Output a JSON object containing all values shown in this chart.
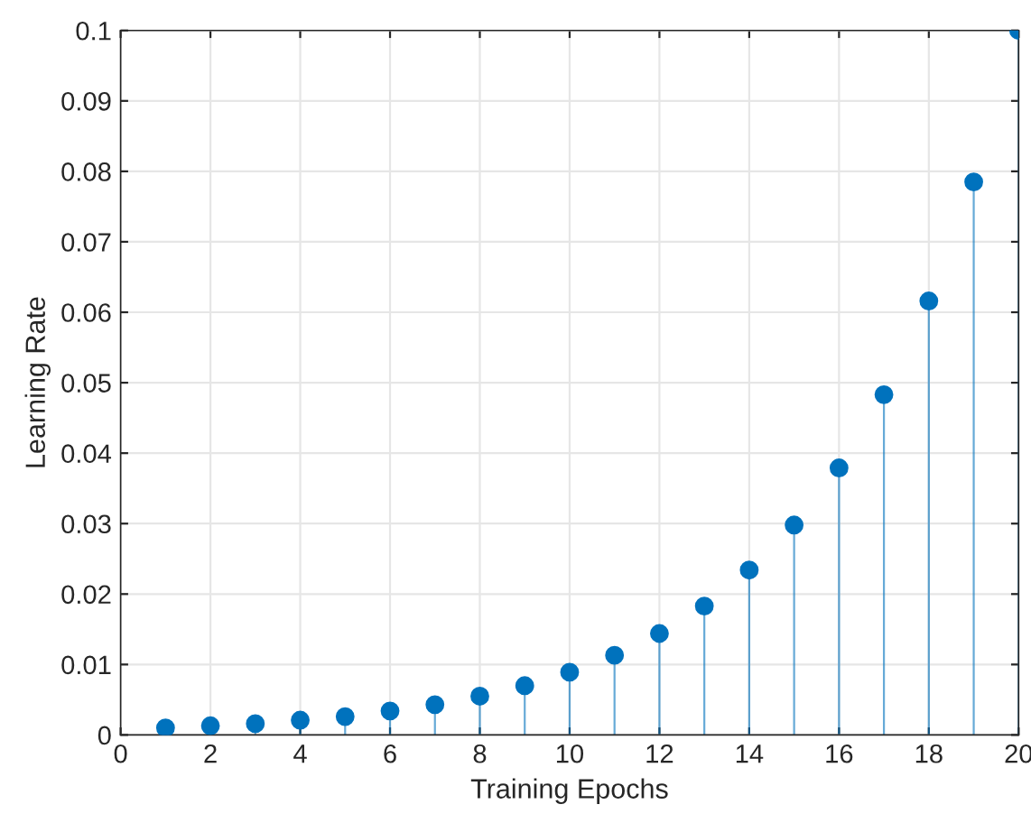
{
  "chart_data": {
    "type": "lollipop",
    "xlabel": "Training Epochs",
    "ylabel": "Learning Rate",
    "x": [
      1,
      2,
      3,
      4,
      5,
      6,
      7,
      8,
      9,
      10,
      11,
      12,
      13,
      14,
      15,
      16,
      17,
      18,
      19,
      20
    ],
    "values": [
      0.001,
      0.0013,
      0.0016,
      0.0021,
      0.0026,
      0.0034,
      0.0043,
      0.0055,
      0.007,
      0.0089,
      0.0113,
      0.0144,
      0.0183,
      0.0234,
      0.0298,
      0.0379,
      0.0483,
      0.0616,
      0.0785,
      0.1
    ],
    "color": "#0072bd",
    "marker": "circle",
    "grid": true,
    "xlim": [
      0,
      20
    ],
    "xticks": [
      0,
      2,
      4,
      6,
      8,
      10,
      12,
      14,
      16,
      18,
      20
    ],
    "ylim": [
      0,
      0.1
    ],
    "yticks": [
      0,
      0.01,
      0.02,
      0.03,
      0.04,
      0.05,
      0.06,
      0.07,
      0.08,
      0.09,
      0.1
    ]
  }
}
